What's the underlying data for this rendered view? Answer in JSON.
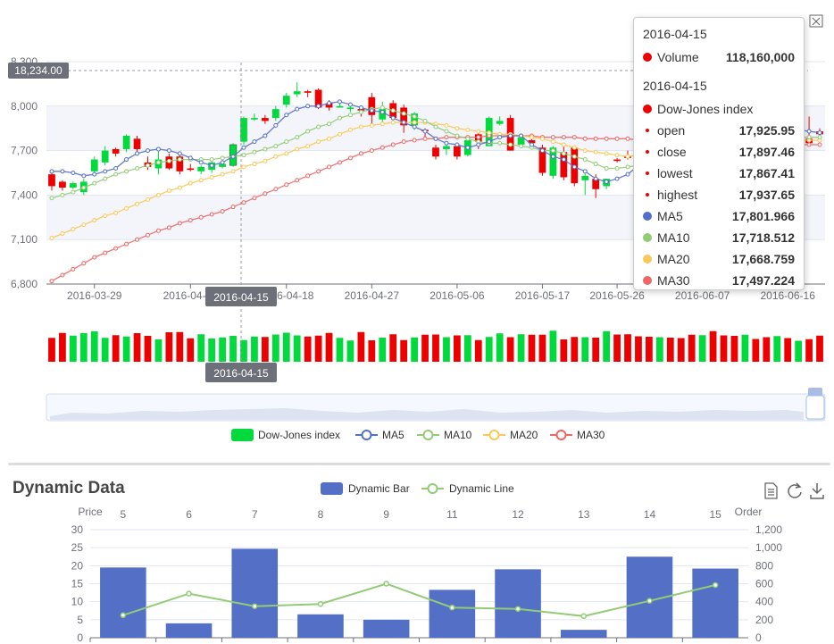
{
  "main_chart": {
    "y_pointer_label": "18,234.00",
    "x_pointer_label": "2016-04-15",
    "legend": [
      "Dow-Jones index",
      "MA5",
      "MA10",
      "MA20",
      "MA30"
    ],
    "colors": {
      "up": "#00da3c",
      "down": "#ec0000",
      "ma5": "#5470c6",
      "ma10": "#91cc75",
      "ma20": "#fac858",
      "ma30": "#ee6666"
    }
  },
  "tooltip": {
    "vol_date": "2016-04-15",
    "vol_label": "Volume",
    "vol_value": "118,160,000",
    "date": "2016-04-15",
    "series": "Dow-Jones index",
    "open_label": "open",
    "open": "17,925.95",
    "close_label": "close",
    "close": "17,897.46",
    "lowest_label": "lowest",
    "lowest": "17,867.41",
    "highest_label": "highest",
    "highest": "17,937.65",
    "ma5_label": "MA5",
    "ma5": "17,801.966",
    "ma10_label": "MA10",
    "ma10": "17,718.512",
    "ma20_label": "MA20",
    "ma20": "17,668.759",
    "ma30_label": "MA30",
    "ma30": "17,497.224"
  },
  "dynamic": {
    "title": "Dynamic Data",
    "legend_bar": "Dynamic Bar",
    "legend_line": "Dynamic Line",
    "left_axis_name": "Price",
    "right_axis_name": "Order"
  },
  "chart_data": [
    {
      "type": "candlestick",
      "x_tick_labels": [
        "2016-03-29",
        "2016-04-07",
        "2016-04-18",
        "2016-04-27",
        "2016-05-06",
        "2016-05-17",
        "2016-05-26",
        "2016-06-07",
        "2016-06-16"
      ],
      "y_tick_labels": [
        "6,800",
        "7,100",
        "7,400",
        "7,700",
        "8,000",
        "8,300"
      ],
      "ylim": [
        6800,
        8300
      ],
      "candles": [
        [
          7540,
          7460,
          7430,
          7560
        ],
        [
          7490,
          7450,
          7430,
          7500
        ],
        [
          7450,
          7480,
          7440,
          7490
        ],
        [
          7420,
          7490,
          7400,
          7510
        ],
        [
          7560,
          7640,
          7550,
          7660
        ],
        [
          7620,
          7700,
          7600,
          7730
        ],
        [
          7710,
          7680,
          7660,
          7720
        ],
        [
          7710,
          7800,
          7690,
          7810
        ],
        [
          7780,
          7710,
          7690,
          7800
        ],
        [
          7620,
          7590,
          7570,
          7660
        ],
        [
          7580,
          7640,
          7540,
          7700
        ],
        [
          7660,
          7580,
          7570,
          7680
        ],
        [
          7660,
          7560,
          7540,
          7680
        ],
        [
          7580,
          7570,
          7560,
          7610
        ],
        [
          7560,
          7590,
          7540,
          7600
        ],
        [
          7570,
          7620,
          7550,
          7640
        ],
        [
          7590,
          7610,
          7580,
          7630
        ],
        [
          7600,
          7740,
          7590,
          7750
        ],
        [
          7760,
          7920,
          7740,
          7930
        ],
        [
          7910,
          7920,
          7900,
          7950
        ],
        [
          7920,
          7900,
          7880,
          7940
        ],
        [
          7920,
          7980,
          7900,
          8000
        ],
        [
          8010,
          8070,
          7990,
          8090
        ],
        [
          8080,
          8100,
          8060,
          8160
        ],
        [
          8100,
          8090,
          8060,
          8110
        ],
        [
          8110,
          7990,
          7980,
          8120
        ],
        [
          8020,
          7990,
          7970,
          8040
        ],
        [
          7990,
          8000,
          7990,
          8030
        ],
        [
          7980,
          7990,
          7960,
          8000
        ],
        [
          7980,
          7970,
          7930,
          8000
        ],
        [
          8060,
          7940,
          7860,
          8090
        ],
        [
          7910,
          7980,
          7870,
          8030
        ],
        [
          8020,
          7920,
          7910,
          8040
        ],
        [
          7990,
          7870,
          7820,
          8010
        ],
        [
          7870,
          7950,
          7840,
          7960
        ],
        [
          7840,
          7830,
          7780,
          7850
        ],
        [
          7720,
          7660,
          7640,
          7740
        ],
        [
          7710,
          7730,
          7670,
          7750
        ],
        [
          7730,
          7660,
          7640,
          7740
        ],
        [
          7670,
          7770,
          7660,
          7790
        ],
        [
          7810,
          7760,
          7710,
          7830
        ],
        [
          7730,
          7920,
          7730,
          7930
        ],
        [
          7880,
          7900,
          7870,
          7930
        ],
        [
          7920,
          7700,
          7700,
          7940
        ],
        [
          7740,
          7790,
          7740,
          7800
        ],
        [
          7770,
          7750,
          7720,
          7790
        ],
        [
          7720,
          7550,
          7530,
          7740
        ],
        [
          7530,
          7720,
          7510,
          7730
        ],
        [
          7690,
          7520,
          7500,
          7730
        ],
        [
          7720,
          7480,
          7460,
          7730
        ],
        [
          7500,
          7530,
          7400,
          7570
        ],
        [
          7510,
          7440,
          7380,
          7540
        ],
        [
          7460,
          7510,
          7440,
          7510
        ],
        [
          7640,
          7630,
          7620,
          7650
        ],
        [
          7660,
          7650,
          7640,
          7700
        ],
        [
          7810,
          7740,
          7730,
          7830
        ],
        [
          7820,
          7790,
          7750,
          7840
        ],
        [
          7810,
          7870,
          7800,
          7880
        ],
        [
          7880,
          7830,
          7810,
          7900
        ],
        [
          7890,
          7870,
          7840,
          7920
        ],
        [
          7860,
          7830,
          7810,
          7880
        ],
        [
          7840,
          7850,
          7820,
          7880
        ],
        [
          7880,
          7850,
          7830,
          7900
        ],
        [
          7870,
          7840,
          7810,
          7910
        ],
        [
          7860,
          7820,
          7800,
          7890
        ],
        [
          7850,
          7880,
          7830,
          7900
        ],
        [
          7860,
          7840,
          7810,
          7890
        ],
        [
          7850,
          7820,
          7800,
          7880
        ],
        [
          7840,
          7860,
          7820,
          7880
        ],
        [
          7870,
          7850,
          7820,
          7900
        ],
        [
          7850,
          7880,
          7830,
          7910
        ],
        [
          7780,
          7750,
          7740,
          7930
        ],
        [
          7830,
          7810,
          7800,
          7850
        ]
      ],
      "ma5": [
        7560,
        7560,
        7550,
        7530,
        7540,
        7560,
        7580,
        7640,
        7680,
        7700,
        7710,
        7700,
        7680,
        7650,
        7620,
        7600,
        7620,
        7660,
        7720,
        7760,
        7800,
        7870,
        7940,
        7980,
        8000,
        8000,
        8020,
        8030,
        8010,
        7990,
        7970,
        7960,
        7920,
        7890,
        7860,
        7830,
        7780,
        7750,
        7740,
        7720,
        7740,
        7760,
        7790,
        7800,
        7800,
        7740,
        7700,
        7660,
        7640,
        7590,
        7560,
        7510,
        7490,
        7510,
        7540,
        7600,
        7640,
        7720,
        7760,
        7790,
        7810,
        7820,
        7830,
        7840,
        7840,
        7840,
        7840,
        7840,
        7840,
        7840,
        7840,
        7830,
        7820
      ],
      "ma10": [
        7380,
        7400,
        7420,
        7450,
        7480,
        7510,
        7540,
        7560,
        7580,
        7600,
        7620,
        7630,
        7640,
        7640,
        7640,
        7640,
        7650,
        7660,
        7670,
        7690,
        7710,
        7730,
        7760,
        7790,
        7830,
        7860,
        7880,
        7920,
        7940,
        7960,
        7980,
        7990,
        7970,
        7950,
        7930,
        7900,
        7860,
        7830,
        7800,
        7780,
        7760,
        7750,
        7750,
        7740,
        7730,
        7720,
        7700,
        7700,
        7680,
        7660,
        7640,
        7610,
        7580,
        7580,
        7590,
        7600,
        7630,
        7650,
        7660,
        7680,
        7700,
        7720,
        7740,
        7750,
        7760,
        7770,
        7770,
        7780,
        7790,
        7790,
        7790,
        7790,
        7790
      ],
      "ma20": [
        7110,
        7140,
        7170,
        7200,
        7230,
        7260,
        7280,
        7310,
        7340,
        7370,
        7400,
        7430,
        7450,
        7480,
        7500,
        7520,
        7540,
        7560,
        7590,
        7610,
        7630,
        7660,
        7680,
        7710,
        7730,
        7760,
        7780,
        7810,
        7840,
        7860,
        7870,
        7880,
        7890,
        7890,
        7890,
        7890,
        7880,
        7870,
        7850,
        7840,
        7830,
        7820,
        7810,
        7810,
        7800,
        7790,
        7780,
        7760,
        7740,
        7720,
        7700,
        7690,
        7680,
        7670,
        7660,
        7670,
        7680,
        7680,
        7690,
        7700,
        7710,
        7720,
        7730,
        7740,
        7750,
        7750,
        7760,
        7760,
        7760,
        7770,
        7770,
        7770,
        7770
      ],
      "ma30": [
        6820,
        6860,
        6900,
        6940,
        6980,
        7010,
        7040,
        7070,
        7100,
        7130,
        7160,
        7180,
        7210,
        7230,
        7250,
        7270,
        7290,
        7320,
        7350,
        7380,
        7410,
        7440,
        7470,
        7500,
        7530,
        7560,
        7590,
        7620,
        7650,
        7680,
        7700,
        7720,
        7740,
        7760,
        7770,
        7780,
        7780,
        7790,
        7790,
        7790,
        7790,
        7800,
        7800,
        7800,
        7800,
        7800,
        7790,
        7790,
        7790,
        7790,
        7780,
        7780,
        7780,
        7780,
        7780,
        7770,
        7770,
        7770,
        7770,
        7770,
        7760,
        7760,
        7760,
        7750,
        7750,
        7750,
        7750,
        7740,
        7740,
        7740,
        7740,
        7740,
        7740
      ],
      "highlight_index": 17
    },
    {
      "type": "bar",
      "title": "Dynamic Data",
      "categories": [
        "5",
        "6",
        "7",
        "8",
        "9",
        "11",
        "12",
        "13",
        "14",
        "15"
      ],
      "series": [
        {
          "name": "Dynamic Bar",
          "type": "bar",
          "values": [
            19.5,
            4,
            24.7,
            6.5,
            5,
            13.3,
            19,
            2.2,
            22.5,
            19.2
          ]
        },
        {
          "name": "Dynamic Line",
          "type": "line",
          "values": [
            250,
            490,
            350,
            375,
            600,
            335,
            320,
            240,
            410,
            585
          ]
        }
      ],
      "ylabel_left": "Price",
      "ylim_left": [
        0,
        30
      ],
      "yticks_left": [
        "0",
        "5",
        "10",
        "15",
        "20",
        "25",
        "30"
      ],
      "ylabel_right": "Order",
      "ylim_right": [
        0,
        1200
      ],
      "yticks_right": [
        "0",
        "200",
        "400",
        "600",
        "800",
        "1,000",
        "1,200"
      ]
    }
  ]
}
